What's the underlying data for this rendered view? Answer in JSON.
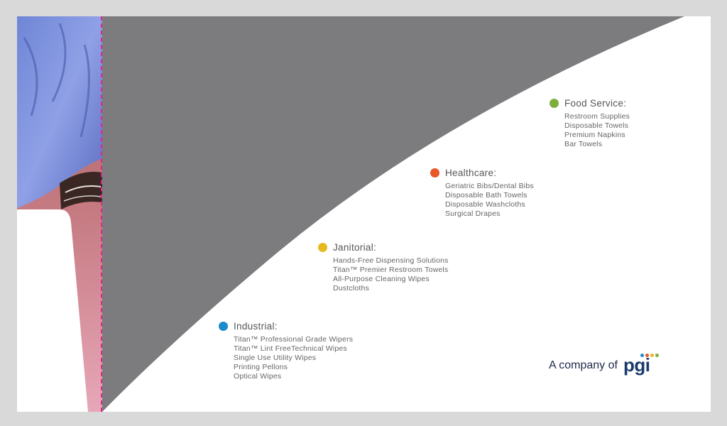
{
  "colors": {
    "swoosh": "#7c7c7e",
    "industrial": "#1a8ccc",
    "janitorial": "#e8b820",
    "healthcare": "#e8562a",
    "food_service": "#7cae3c",
    "trim_line": "#e0288c"
  },
  "photo": {
    "icon": "photo-icon"
  },
  "categories": [
    {
      "title": "Food Service:",
      "color": "#7cae3c",
      "items": [
        "Restroom Supplies",
        "Disposable Towels",
        "Premium Napkins",
        "Bar Towels"
      ]
    },
    {
      "title": "Healthcare:",
      "color": "#e8562a",
      "items": [
        "Geriatric Bibs/Dental Bibs",
        "Disposable Bath Towels",
        "Disposable Washcloths",
        "Surgical Drapes"
      ]
    },
    {
      "title": "Janitorial:",
      "color": "#e8b820",
      "items": [
        "Hands-Free Dispensing Solutions",
        "Titan™ Premier Restroom Towels",
        "All-Purpose Cleaning Wipes",
        "Dustcloths"
      ]
    },
    {
      "title": "Industrial:",
      "color": "#1a8ccc",
      "items": [
        "Titan™ Professional Grade Wipers",
        "Titan™ Lint FreeTechnical Wipes",
        "Single Use Utility Wipes",
        "Printing Pellons",
        "Optical Wipes"
      ]
    }
  ],
  "brand": {
    "text": "A company of",
    "logo": "pgi",
    "logo_dot_colors": [
      "#1a8ccc",
      "#e8562a",
      "#e8b820",
      "#7cae3c"
    ]
  }
}
